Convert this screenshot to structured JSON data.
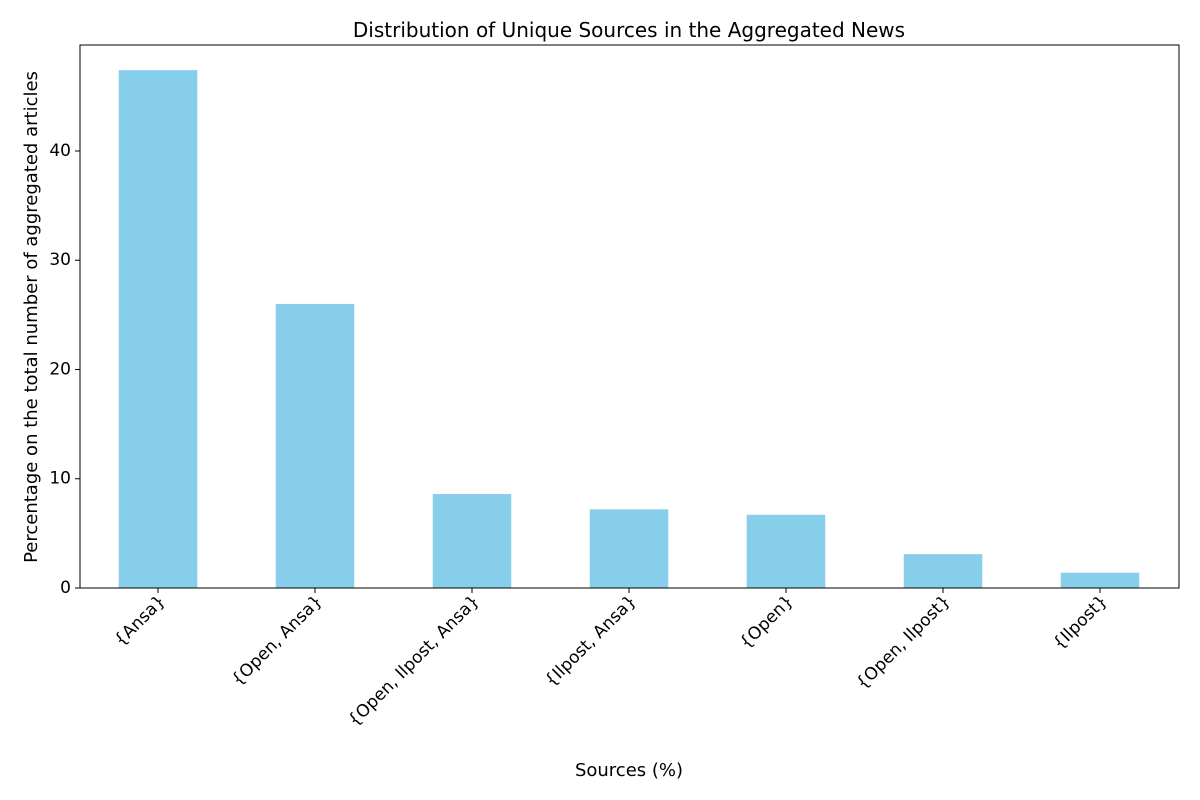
{
  "chart_data": {
    "type": "bar",
    "title": "Distribution of Unique Sources in the Aggregated News",
    "xlabel": "Sources (%)",
    "ylabel": "Percentage on the total number of aggregated articles",
    "categories": [
      "{Ansa}",
      "{Open, Ansa}",
      "{Open, Ilpost, Ansa}",
      "{Ilpost, Ansa}",
      "{Open}",
      "{Open, Ilpost}",
      "{Ilpost}"
    ],
    "values": [
      47.4,
      26.0,
      8.6,
      7.2,
      6.7,
      3.1,
      1.4
    ],
    "ylim": [
      0,
      49.7
    ],
    "yticks": [
      "0",
      "10",
      "20",
      "30",
      "40"
    ],
    "bar_color": "#87ceeb",
    "grid": false,
    "xtick_rotation": 45
  }
}
